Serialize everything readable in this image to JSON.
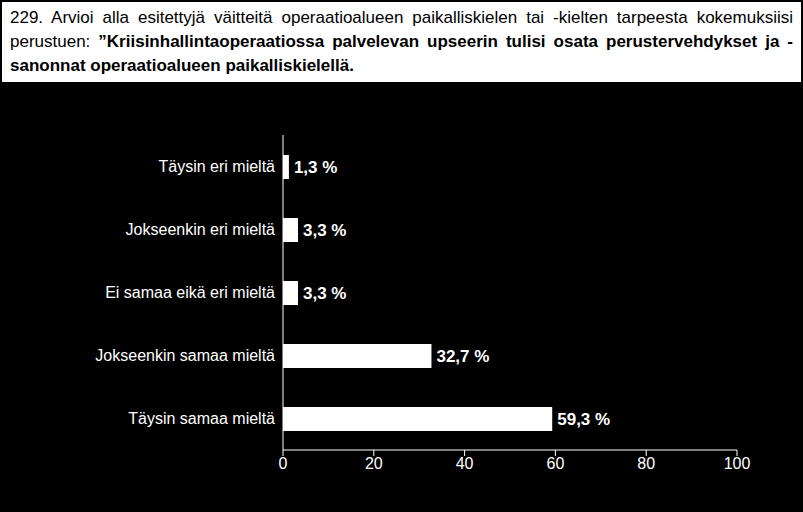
{
  "chart_data": {
    "type": "bar",
    "orientation": "horizontal",
    "title": "229. Arvioi alla esitettyjä väitteitä operaatioalueen paikalliskielen tai -kielten tarpeesta kokemuksiisi perustuen: ”Kriisinhallintaoperaatiossa palvelevan upseerin tulisi osata perustervehdykset ja -sanonnat operaatioalueen paikalliskielellä.",
    "categories": [
      "Täysin eri mieltä",
      "Jokseenkin eri mieltä",
      "Ei samaa eikä eri mieltä",
      "Jokseenkin samaa mieltä",
      "Täysin samaa mieltä"
    ],
    "values": [
      1.3,
      3.3,
      3.3,
      32.7,
      59.3
    ],
    "value_labels": [
      "1,3 %",
      "3,3 %",
      "3,3 %",
      "32,7 %",
      "59,3 %"
    ],
    "data_labels": true,
    "color": "#ffffff",
    "xlim": [
      0,
      100
    ],
    "xticks": [
      0,
      20,
      40,
      60,
      80,
      100
    ],
    "grid": false
  }
}
